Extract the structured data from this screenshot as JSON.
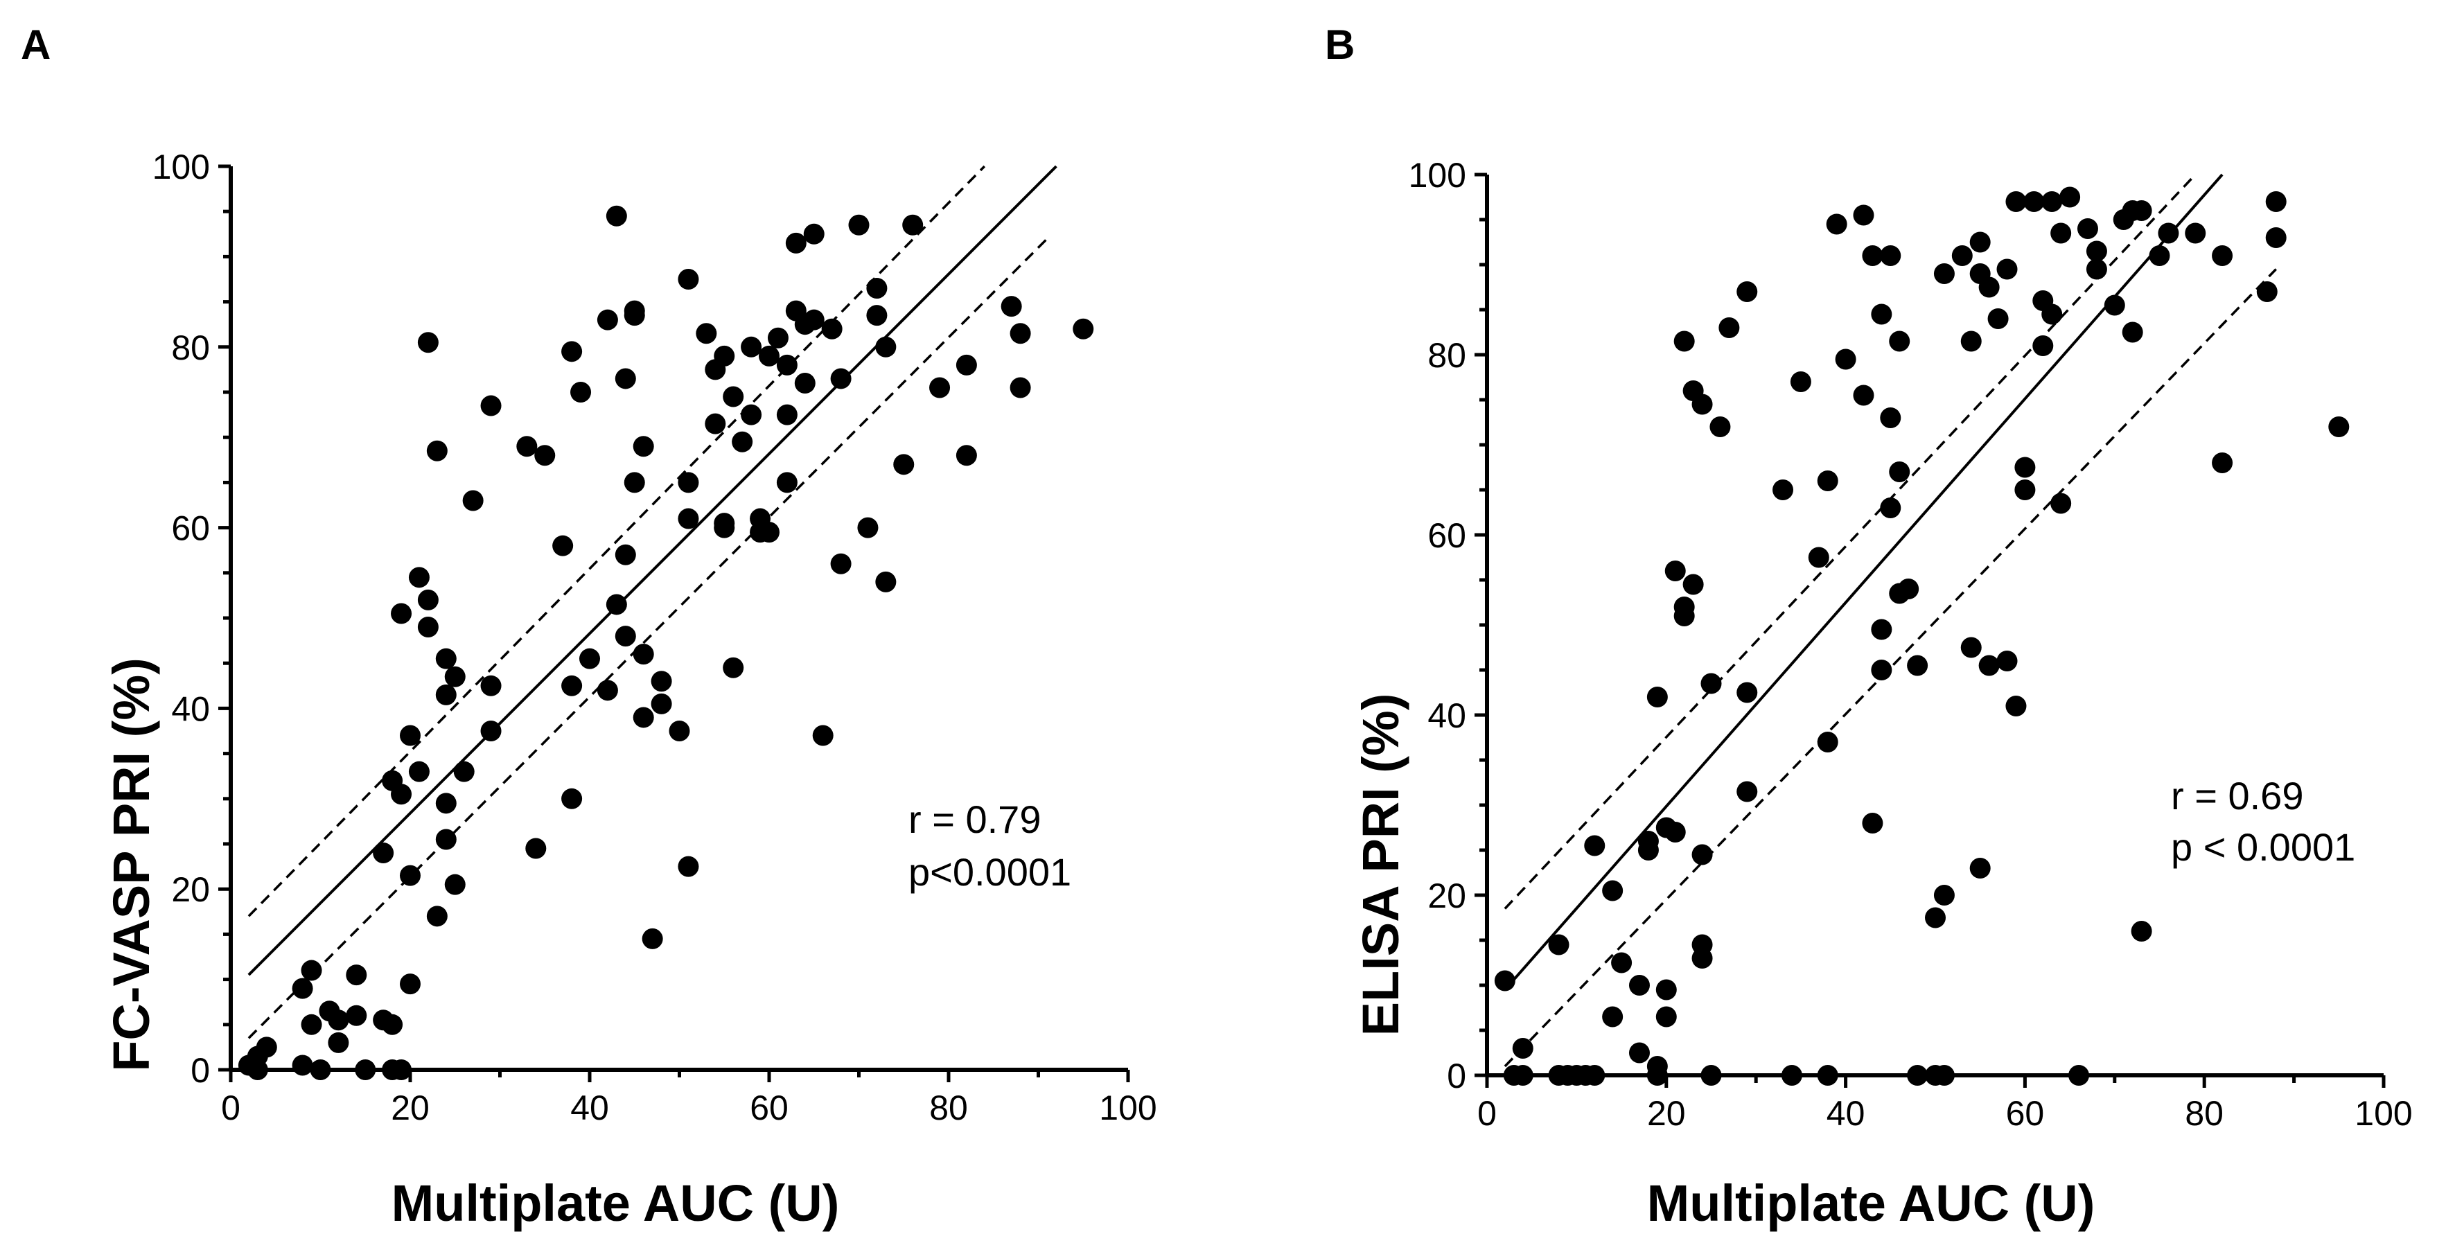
{
  "chart_data": [
    {
      "type": "scatter",
      "panel": "A",
      "xlabel": "Multiplate AUC (U)",
      "ylabel": "FC-VASP PRI (%)",
      "xlim": [
        0,
        100
      ],
      "ylim": [
        0,
        100
      ],
      "xticks": [
        0,
        20,
        40,
        60,
        80,
        100
      ],
      "yticks": [
        0,
        20,
        40,
        60,
        80,
        100
      ],
      "annotation": [
        "r = 0.79",
        "p<0.0001"
      ],
      "fit": {
        "x": [
          2,
          92
        ],
        "y": [
          10.5,
          100
        ]
      },
      "ci_upper": {
        "x": [
          2,
          84
        ],
        "y": [
          17,
          100
        ]
      },
      "ci_lower": {
        "x": [
          2,
          91
        ],
        "y": [
          3.5,
          92
        ]
      },
      "points": [
        [
          2,
          0.5
        ],
        [
          3,
          1.5
        ],
        [
          3,
          0
        ],
        [
          4,
          2.5
        ],
        [
          8,
          0.5
        ],
        [
          8,
          9
        ],
        [
          9,
          11
        ],
        [
          9,
          5
        ],
        [
          10,
          0
        ],
        [
          11,
          6.5
        ],
        [
          12,
          3
        ],
        [
          12,
          5.5
        ],
        [
          14,
          10.5
        ],
        [
          14,
          6
        ],
        [
          15,
          0
        ],
        [
          17,
          5.5
        ],
        [
          18,
          5
        ],
        [
          18,
          0
        ],
        [
          19,
          0
        ],
        [
          17,
          24
        ],
        [
          18,
          32
        ],
        [
          19,
          30.5
        ],
        [
          19,
          50.5
        ],
        [
          20,
          9.5
        ],
        [
          20,
          21.5
        ],
        [
          20,
          37
        ],
        [
          21,
          33
        ],
        [
          21,
          54.5
        ],
        [
          22,
          52
        ],
        [
          22,
          49
        ],
        [
          22,
          80.5
        ],
        [
          23,
          68.5
        ],
        [
          23,
          17
        ],
        [
          24,
          29.5
        ],
        [
          24,
          25.5
        ],
        [
          24,
          41.5
        ],
        [
          24,
          45.5
        ],
        [
          25,
          43.5
        ],
        [
          25,
          20.5
        ],
        [
          26,
          33
        ],
        [
          27,
          63
        ],
        [
          29,
          73.5
        ],
        [
          29,
          42.5
        ],
        [
          29,
          37.5
        ],
        [
          33,
          69
        ],
        [
          34,
          24.5
        ],
        [
          35,
          68
        ],
        [
          37,
          58
        ],
        [
          38,
          42.5
        ],
        [
          38,
          79.5
        ],
        [
          38,
          30
        ],
        [
          39,
          75
        ],
        [
          40,
          45.5
        ],
        [
          42,
          42
        ],
        [
          42,
          83
        ],
        [
          43,
          94.5
        ],
        [
          43,
          51.5
        ],
        [
          44,
          57
        ],
        [
          44,
          48
        ],
        [
          44,
          76.5
        ],
        [
          45,
          65
        ],
        [
          45,
          84
        ],
        [
          45,
          83.5
        ],
        [
          46,
          46
        ],
        [
          46,
          39
        ],
        [
          46,
          69
        ],
        [
          47,
          14.5
        ],
        [
          48,
          43
        ],
        [
          48,
          40.5
        ],
        [
          50,
          37.5
        ],
        [
          51,
          22.5
        ],
        [
          51,
          87.5
        ],
        [
          51,
          65
        ],
        [
          51,
          61
        ],
        [
          53,
          81.5
        ],
        [
          54,
          71.5
        ],
        [
          54,
          77.5
        ],
        [
          55,
          60
        ],
        [
          55,
          60.5
        ],
        [
          55,
          79
        ],
        [
          56,
          74.5
        ],
        [
          56,
          44.5
        ],
        [
          57,
          69.5
        ],
        [
          58,
          80
        ],
        [
          58,
          72.5
        ],
        [
          59,
          59.5
        ],
        [
          59,
          61
        ],
        [
          60,
          59.5
        ],
        [
          60,
          79
        ],
        [
          61,
          81
        ],
        [
          62,
          65
        ],
        [
          62,
          72.5
        ],
        [
          62,
          78
        ],
        [
          63,
          84
        ],
        [
          63,
          91.5
        ],
        [
          64,
          82.5
        ],
        [
          64,
          76
        ],
        [
          65,
          92.5
        ],
        [
          65,
          83
        ],
        [
          66,
          37
        ],
        [
          67,
          82
        ],
        [
          68,
          76.5
        ],
        [
          68,
          56
        ],
        [
          70,
          93.5
        ],
        [
          71,
          60
        ],
        [
          72,
          86.5
        ],
        [
          72,
          83.5
        ],
        [
          73,
          54
        ],
        [
          73,
          80
        ],
        [
          75,
          67
        ],
        [
          76,
          93.5
        ],
        [
          79,
          75.5
        ],
        [
          82,
          78
        ],
        [
          82,
          68
        ],
        [
          87,
          84.5
        ],
        [
          88,
          81.5
        ],
        [
          88,
          75.5
        ],
        [
          95,
          82
        ]
      ]
    },
    {
      "type": "scatter",
      "panel": "B",
      "xlabel": "Multiplate AUC (U)",
      "ylabel": "ELISA PRI (%)",
      "xlim": [
        0,
        100
      ],
      "ylim": [
        0,
        100
      ],
      "xticks": [
        0,
        20,
        40,
        60,
        80,
        100
      ],
      "yticks": [
        0,
        20,
        40,
        60,
        80,
        100
      ],
      "annotation": [
        "r = 0.69",
        "p < 0.0001"
      ],
      "fit": {
        "x": [
          2,
          82
        ],
        "y": [
          9.5,
          100
        ]
      },
      "ci_upper": {
        "x": [
          2,
          79
        ],
        "y": [
          18.5,
          100
        ]
      },
      "ci_lower": {
        "x": [
          2,
          88
        ],
        "y": [
          1,
          89.5
        ]
      },
      "points": [
        [
          2,
          10.5
        ],
        [
          3,
          0
        ],
        [
          4,
          3
        ],
        [
          4,
          0
        ],
        [
          8,
          14.5
        ],
        [
          8,
          0
        ],
        [
          9,
          0
        ],
        [
          10,
          0
        ],
        [
          11,
          0
        ],
        [
          12,
          25.5
        ],
        [
          12,
          0
        ],
        [
          14,
          20.5
        ],
        [
          14,
          6.5
        ],
        [
          15,
          12.5
        ],
        [
          17,
          10
        ],
        [
          17,
          2.5
        ],
        [
          18,
          25
        ],
        [
          18,
          26
        ],
        [
          19,
          42
        ],
        [
          19,
          1
        ],
        [
          19,
          0
        ],
        [
          20,
          9.5
        ],
        [
          20,
          6.5
        ],
        [
          20,
          27.5
        ],
        [
          21,
          56
        ],
        [
          21,
          27
        ],
        [
          22,
          81.5
        ],
        [
          22,
          52
        ],
        [
          22,
          51
        ],
        [
          23,
          76
        ],
        [
          23,
          54.5
        ],
        [
          24,
          74.5
        ],
        [
          24,
          24.5
        ],
        [
          24,
          14.5
        ],
        [
          24,
          13
        ],
        [
          25,
          43.5
        ],
        [
          25,
          0
        ],
        [
          26,
          72
        ],
        [
          27,
          83
        ],
        [
          29,
          87
        ],
        [
          29,
          42.5
        ],
        [
          29,
          31.5
        ],
        [
          33,
          65
        ],
        [
          34,
          0
        ],
        [
          35,
          77
        ],
        [
          37,
          57.5
        ],
        [
          38,
          66
        ],
        [
          38,
          37
        ],
        [
          38,
          0
        ],
        [
          39,
          94.5
        ],
        [
          40,
          79.5
        ],
        [
          42,
          75.5
        ],
        [
          42,
          95.5
        ],
        [
          43,
          91
        ],
        [
          43,
          28
        ],
        [
          44,
          84.5
        ],
        [
          44,
          49.5
        ],
        [
          44,
          45
        ],
        [
          45,
          63
        ],
        [
          45,
          73
        ],
        [
          45,
          91
        ],
        [
          46,
          81.5
        ],
        [
          46,
          67
        ],
        [
          46,
          53.5
        ],
        [
          47,
          54
        ],
        [
          48,
          45.5
        ],
        [
          48,
          0
        ],
        [
          50,
          17.5
        ],
        [
          50,
          0
        ],
        [
          51,
          20
        ],
        [
          51,
          89
        ],
        [
          51,
          0
        ],
        [
          53,
          91
        ],
        [
          54,
          81.5
        ],
        [
          54,
          47.5
        ],
        [
          55,
          92.5
        ],
        [
          55,
          89
        ],
        [
          55,
          23
        ],
        [
          56,
          87.5
        ],
        [
          56,
          45.5
        ],
        [
          57,
          84
        ],
        [
          58,
          89.5
        ],
        [
          58,
          46
        ],
        [
          59,
          41
        ],
        [
          59,
          97
        ],
        [
          60,
          67.5
        ],
        [
          60,
          65
        ],
        [
          61,
          97
        ],
        [
          62,
          86
        ],
        [
          62,
          81
        ],
        [
          63,
          97
        ],
        [
          63,
          84.5
        ],
        [
          64,
          93.5
        ],
        [
          64,
          63.5
        ],
        [
          65,
          97.5
        ],
        [
          66,
          0
        ],
        [
          67,
          94
        ],
        [
          68,
          91.5
        ],
        [
          68,
          89.5
        ],
        [
          70,
          85.5
        ],
        [
          71,
          95
        ],
        [
          72,
          96
        ],
        [
          72,
          82.5
        ],
        [
          73,
          96
        ],
        [
          73,
          16
        ],
        [
          75,
          91
        ],
        [
          76,
          93.5
        ],
        [
          79,
          93.5
        ],
        [
          82,
          91
        ],
        [
          82,
          68
        ],
        [
          87,
          87
        ],
        [
          88,
          97
        ],
        [
          88,
          93
        ],
        [
          95,
          72
        ]
      ]
    }
  ]
}
